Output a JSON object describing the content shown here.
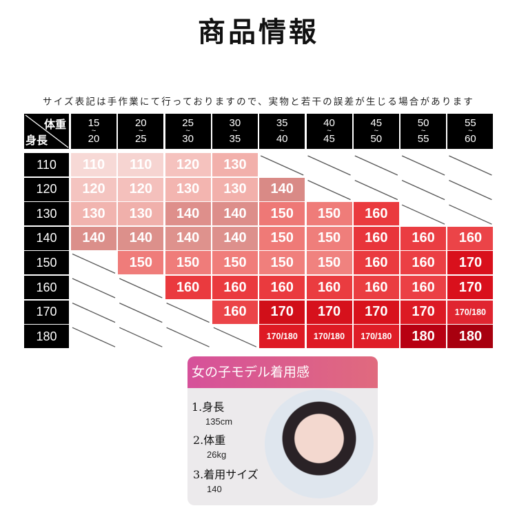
{
  "title": "商品情報",
  "note": "サイズ表記は手作業にて行っておりますので、実物と若干の誤差が生じる場合があります",
  "table": {
    "corner_weight": "体重",
    "corner_height": "身長",
    "weight_ranges": [
      [
        "15",
        "20"
      ],
      [
        "20",
        "25"
      ],
      [
        "25",
        "30"
      ],
      [
        "30",
        "35"
      ],
      [
        "35",
        "40"
      ],
      [
        "40",
        "45"
      ],
      [
        "45",
        "50"
      ],
      [
        "50",
        "55"
      ],
      [
        "55",
        "60"
      ]
    ],
    "tilde": "~",
    "rows": [
      {
        "height": "110",
        "cells": [
          [
            "110",
            "#f7d9d6"
          ],
          [
            "110",
            "#f6d4d1"
          ],
          [
            "120",
            "#f5c2be"
          ],
          [
            "130",
            "#f2b0ab"
          ],
          null,
          null,
          null,
          null,
          null
        ]
      },
      {
        "height": "120",
        "cells": [
          [
            "120",
            "#f4c4c0"
          ],
          [
            "120",
            "#f4c0bc"
          ],
          [
            "130",
            "#f3b5b0"
          ],
          [
            "130",
            "#f2b0ab"
          ],
          [
            "140",
            "#d98a86"
          ],
          null,
          null,
          null,
          null
        ]
      },
      {
        "height": "130",
        "cells": [
          [
            "130",
            "#f1b4af"
          ],
          [
            "130",
            "#f0b0ab"
          ],
          [
            "140",
            "#de8f8b"
          ],
          [
            "140",
            "#dd8e8a"
          ],
          [
            "150",
            "#ee7876"
          ],
          [
            "150",
            "#ef7c79"
          ],
          [
            "160",
            "#ea3a3e"
          ],
          null,
          null
        ]
      },
      {
        "height": "140",
        "cells": [
          [
            "140",
            "#db8f8a"
          ],
          [
            "140",
            "#dc908b"
          ],
          [
            "140",
            "#de928d"
          ],
          [
            "140",
            "#dd908c"
          ],
          [
            "150",
            "#ef7a77"
          ],
          [
            "150",
            "#ef7e7b"
          ],
          [
            "160",
            "#e8353b"
          ],
          [
            "160",
            "#ea3d42"
          ],
          [
            "160",
            "#eb4448"
          ]
        ]
      },
      {
        "height": "150",
        "cells": [
          null,
          [
            "150",
            "#ef7c7a"
          ],
          [
            "150",
            "#ef7c7a"
          ],
          [
            "150",
            "#f07d7a"
          ],
          [
            "150",
            "#f07f7c"
          ],
          [
            "150",
            "#f0827f"
          ],
          [
            "160",
            "#ea3a3f"
          ],
          [
            "160",
            "#eb3f44"
          ],
          [
            "170",
            "#d9101c"
          ]
        ]
      },
      {
        "height": "160",
        "cells": [
          null,
          null,
          [
            "160",
            "#ea3a3e"
          ],
          [
            "160",
            "#ea3a3e"
          ],
          [
            "160",
            "#ea3a3e"
          ],
          [
            "160",
            "#ea3c40"
          ],
          [
            "160",
            "#ea3d41"
          ],
          [
            "160",
            "#eb4045"
          ],
          [
            "170",
            "#d9101c"
          ]
        ]
      },
      {
        "height": "170",
        "cells": [
          null,
          null,
          null,
          [
            "160",
            "#eb4448"
          ],
          [
            "170",
            "#d10f19"
          ],
          [
            "170",
            "#d6111c"
          ],
          [
            "170",
            "#d8121c"
          ],
          [
            "170",
            "#dc1a24"
          ],
          [
            "170/180",
            "#e02530"
          ]
        ]
      },
      {
        "height": "180",
        "cells": [
          null,
          null,
          null,
          null,
          [
            "170/180",
            "#de1a24"
          ],
          [
            "170/180",
            "#de1a24"
          ],
          [
            "170/180",
            "#df1d27"
          ],
          [
            "180",
            "#b80012"
          ],
          [
            "180",
            "#a8000f"
          ]
        ]
      }
    ]
  },
  "model_card": {
    "header": "女の子モデル着用感",
    "header_gradient": [
      "#d6519a",
      "#e06a7e"
    ],
    "items": [
      {
        "label": "1.身長",
        "value": "135cm"
      },
      {
        "label": "2.体重",
        "value": "26kg"
      },
      {
        "label": "3.着用サイズ",
        "value": "140"
      }
    ]
  }
}
